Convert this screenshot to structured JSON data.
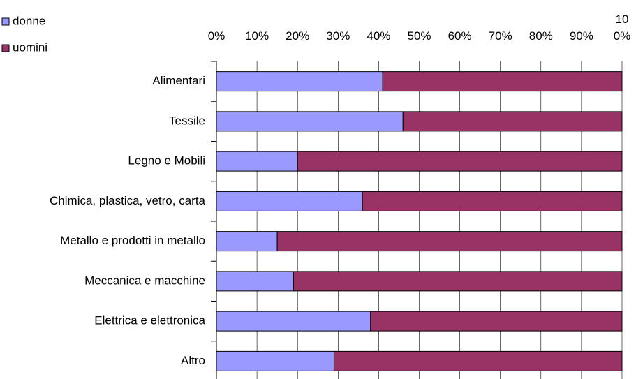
{
  "chart_data": {
    "type": "stacked_bar_horizontal",
    "categories": [
      "Alimentari",
      "Tessile",
      "Legno e Mobili",
      "Chimica, plastica, vetro, carta",
      "Metallo e prodotti in metallo",
      "Meccanica e macchine",
      "Elettrica e elettronica",
      "Altro"
    ],
    "series": [
      {
        "name": "donne",
        "color": "#9999ff",
        "values": [
          41,
          46,
          20,
          36,
          15,
          19,
          38,
          29
        ]
      },
      {
        "name": "uomini",
        "color": "#993366",
        "values": [
          59,
          54,
          80,
          64,
          85,
          81,
          62,
          71
        ]
      }
    ],
    "xlim": [
      0,
      100
    ],
    "xticks": [
      {
        "value": 0,
        "label": "0%"
      },
      {
        "value": 10,
        "label": "10%"
      },
      {
        "value": 20,
        "label": "20%"
      },
      {
        "value": 30,
        "label": "30%"
      },
      {
        "value": 40,
        "label": "40%"
      },
      {
        "value": 50,
        "label": "50%"
      },
      {
        "value": 60,
        "label": "60%"
      },
      {
        "value": 70,
        "label": "70%"
      },
      {
        "value": 80,
        "label": "80%"
      },
      {
        "value": 90,
        "label": "90%"
      },
      {
        "value": 100,
        "label": "100%"
      }
    ],
    "grid": true,
    "legend": "top-left"
  }
}
